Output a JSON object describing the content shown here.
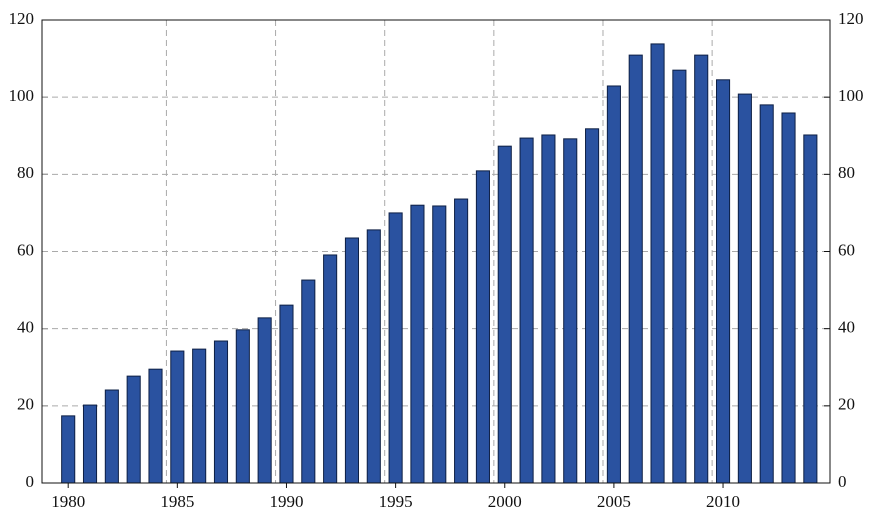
{
  "chart_data": {
    "type": "bar",
    "x": [
      1980,
      1981,
      1982,
      1983,
      1984,
      1985,
      1986,
      1987,
      1988,
      1989,
      1990,
      1991,
      1992,
      1993,
      1994,
      1995,
      1996,
      1997,
      1998,
      1999,
      2000,
      2001,
      2002,
      2003,
      2004,
      2005,
      2006,
      2007,
      2008,
      2009,
      2010,
      2011,
      2012,
      2013,
      2014
    ],
    "values": [
      17.4,
      20.2,
      24.1,
      27.7,
      29.5,
      34.2,
      34.7,
      36.8,
      39.7,
      42.8,
      46.1,
      52.6,
      59.1,
      63.5,
      65.6,
      70.0,
      72.0,
      71.8,
      73.6,
      80.9,
      87.3,
      89.4,
      90.2,
      89.2,
      91.8,
      102.9,
      110.9,
      113.8,
      107.0,
      110.9,
      104.5,
      100.8,
      98.0,
      95.9,
      90.2
    ],
    "color": "#2a52a0",
    "xlim": [
      1978.8,
      2014.9
    ],
    "xticks": [
      1980,
      1985,
      1990,
      1995,
      2000,
      2005,
      2010
    ],
    "xgrid": [
      1984.5,
      1989.5,
      1994.5,
      1999.5,
      2004.5,
      2009.5
    ],
    "ylim": [
      0,
      120
    ],
    "yticks": [
      0,
      20,
      40,
      60,
      80,
      100,
      120
    ],
    "y2lim": [
      0,
      120
    ],
    "y2ticks": [
      0,
      20,
      40,
      60,
      80,
      100,
      120
    ],
    "grid": true
  }
}
